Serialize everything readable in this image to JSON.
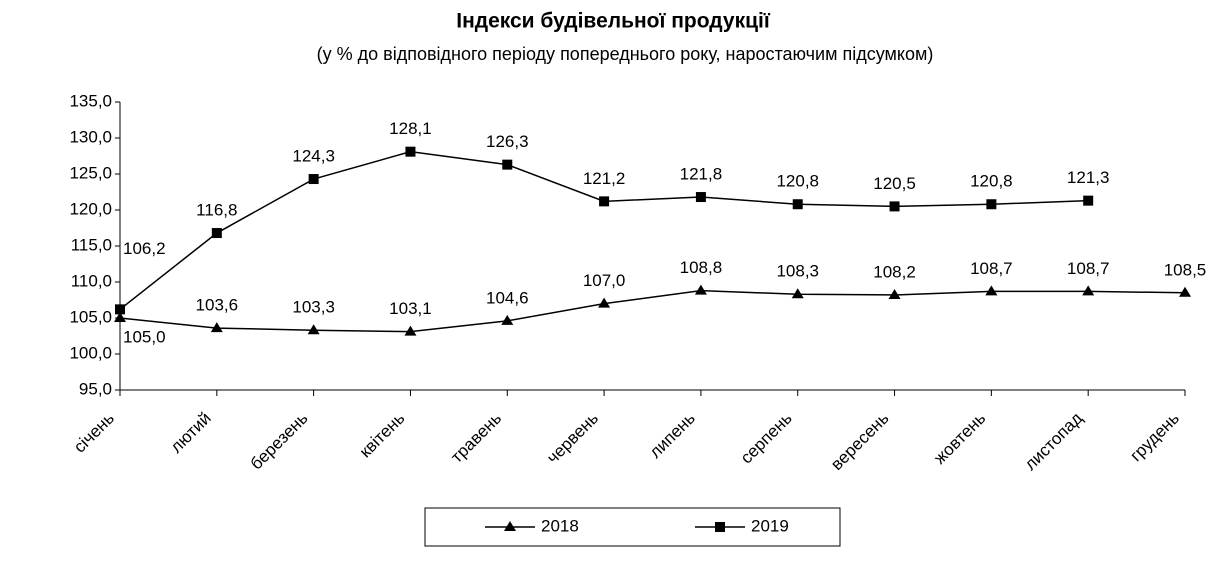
{
  "chart_data": {
    "type": "line",
    "title": "Індекси будівельної продукції",
    "subtitle": "(у % до відповідного періоду попереднього року, наростаючим підсумком)",
    "categories": [
      "січень",
      "лютий",
      "березень",
      "квітень",
      "травень",
      "червень",
      "липень",
      "серпень",
      "вересень",
      "жовтень",
      "листопад",
      "грудень"
    ],
    "series": [
      {
        "name": "2018",
        "color": "#000000",
        "marker": "triangle",
        "values": [
          105.0,
          103.6,
          103.3,
          103.1,
          104.6,
          107.0,
          108.8,
          108.3,
          108.2,
          108.7,
          108.7,
          108.5
        ],
        "value_labels": [
          "105,0",
          "103,6",
          "103,3",
          "103,1",
          "104,6",
          "107,0",
          "108,8",
          "108,3",
          "108,2",
          "108,7",
          "108,7",
          "108,5"
        ]
      },
      {
        "name": "2019",
        "color": "#000000",
        "marker": "square",
        "values": [
          106.2,
          116.8,
          124.3,
          128.1,
          126.3,
          121.2,
          121.8,
          120.8,
          120.5,
          120.8,
          121.3,
          null
        ],
        "value_labels": [
          "106,2",
          "116,8",
          "124,3",
          "128,1",
          "126,3",
          "121,2",
          "121,8",
          "120,8",
          "120,5",
          "120,8",
          "121,3",
          null
        ]
      }
    ],
    "ylim": [
      95,
      135
    ],
    "yticks": [
      {
        "value": 95,
        "label": "95,0"
      },
      {
        "value": 100,
        "label": "100,0"
      },
      {
        "value": 105,
        "label": "105,0"
      },
      {
        "value": 110,
        "label": "110,0"
      },
      {
        "value": 115,
        "label": "115,0"
      },
      {
        "value": 120,
        "label": "120,0"
      },
      {
        "value": 125,
        "label": "125,0"
      },
      {
        "value": 130,
        "label": "130,0"
      },
      {
        "value": 135,
        "label": "135,0"
      }
    ],
    "grid": false,
    "legend": "bottom"
  }
}
